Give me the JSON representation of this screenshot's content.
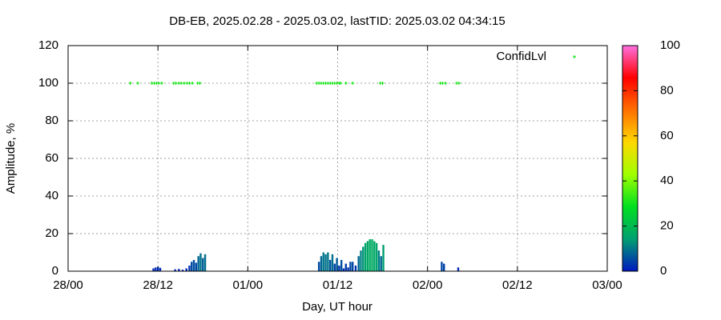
{
  "chart_data": {
    "type": "scatter",
    "title": "DB-EB, 2025.02.28 - 2025.03.02, lastTID: 2025.03.02 04:34:15",
    "x_label": "Day, UT hour",
    "y_label": "Amplitude, %",
    "xlim": [
      0,
      72
    ],
    "xticks": [
      {
        "value": 0,
        "label": "28/00"
      },
      {
        "value": 12,
        "label": "28/12"
      },
      {
        "value": 24,
        "label": "01/00"
      },
      {
        "value": 36,
        "label": "01/12"
      },
      {
        "value": 48,
        "label": "02/00"
      },
      {
        "value": 60,
        "label": "02/12"
      },
      {
        "value": 72,
        "label": "03/00"
      }
    ],
    "ylim": [
      0,
      120
    ],
    "yticks": [
      0,
      20,
      40,
      60,
      80,
      100,
      120
    ],
    "grid": true,
    "legend": "top-right",
    "series": [
      {
        "name": "ConfidLvl",
        "color": "#00e000",
        "x": [
          8.3,
          9.3,
          11.2,
          11.5,
          11.8,
          12.1,
          12.5,
          14.1,
          14.4,
          14.8,
          15.1,
          15.5,
          15.9,
          16.2,
          16.6,
          17.3,
          17.6,
          33.2,
          33.5,
          33.8,
          34.1,
          34.4,
          34.7,
          35.0,
          35.3,
          35.6,
          35.9,
          36.2,
          36.4,
          37.1,
          38.0,
          41.7,
          42.0,
          49.7,
          50.0,
          50.4,
          51.9,
          52.2
        ],
        "values": [
          100,
          100,
          100,
          100,
          100,
          100,
          100,
          100,
          100,
          100,
          100,
          100,
          100,
          100,
          100,
          100,
          100,
          100,
          100,
          100,
          100,
          100,
          100,
          100,
          100,
          100,
          100,
          100,
          100,
          100,
          100,
          100,
          100,
          100,
          100,
          100,
          100,
          100
        ]
      },
      {
        "colormap_fill": true,
        "x": [
          11.4,
          11.7,
          12.0,
          12.3,
          14.3,
          14.8,
          15.3,
          15.8,
          16.2,
          16.5,
          16.8,
          17.1,
          17.4,
          17.7,
          18.0,
          18.3,
          33.5,
          33.8,
          34.1,
          34.4,
          34.7,
          35.0,
          35.3,
          35.6,
          35.9,
          36.2,
          36.5,
          36.8,
          37.1,
          37.4,
          37.7,
          38.0,
          38.4,
          38.8,
          39.1,
          39.4,
          39.7,
          40.0,
          40.3,
          40.6,
          40.9,
          41.2,
          41.5,
          41.8,
          42.1,
          49.9,
          50.2,
          52.1
        ],
        "values": [
          1.5,
          2,
          2.3,
          1.8,
          1,
          1.2,
          0.8,
          1.5,
          3,
          5,
          6,
          4.5,
          8,
          9.5,
          7,
          9,
          5,
          8,
          10,
          9,
          10,
          6,
          9,
          4,
          7,
          3,
          6,
          1.5,
          4,
          2,
          5,
          5,
          3,
          8,
          11,
          13,
          15,
          16,
          17,
          17,
          16,
          15,
          11,
          8,
          14,
          5,
          4,
          2
        ]
      }
    ],
    "colorbar": {
      "lim": [
        0,
        100
      ],
      "ticks": [
        0,
        20,
        40,
        60,
        80,
        100
      ],
      "colormap": [
        "#0018c0",
        "#00a070",
        "#00e020",
        "#a0ff00",
        "#ffd800",
        "#ff7000",
        "#ff0000",
        "#ff70e0"
      ]
    }
  }
}
